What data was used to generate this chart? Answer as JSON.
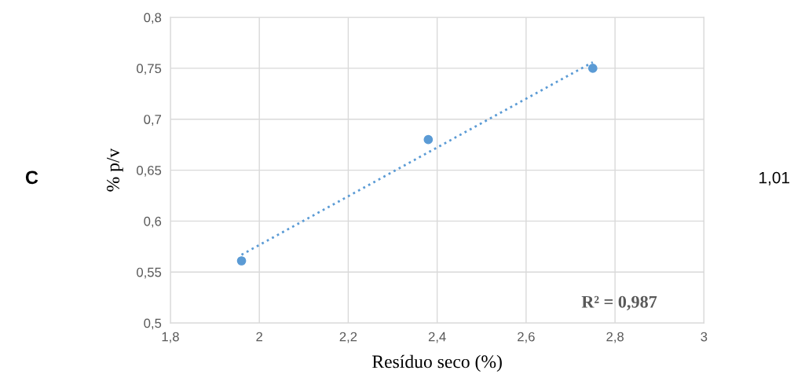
{
  "chart_data": {
    "type": "scatter",
    "xlabel": "Resíduo seco (%)",
    "ylabel": "% p/v",
    "x": [
      1.96,
      2.38,
      2.75
    ],
    "series": [
      {
        "color": "#5b9bd5",
        "values": [
          0.561,
          0.68,
          0.75
        ],
        "marker": "circle"
      },
      {
        "type": "line",
        "color": "#5b9bd5",
        "x": [
          1.96,
          2.75
        ],
        "values": [
          0.567,
          0.756
        ],
        "line_style": "dotted",
        "marker": "none"
      }
    ],
    "xlim": [
      1.8,
      3
    ],
    "ylim": [
      0.5,
      0.8
    ],
    "xticks": [
      {
        "value": 1.8,
        "label": "1,8"
      },
      2,
      {
        "value": 2.2,
        "label": "2,2"
      },
      {
        "value": 2.4,
        "label": "2,4"
      },
      {
        "value": 2.6,
        "label": "2,6"
      },
      {
        "value": 2.8,
        "label": "2,8"
      },
      3
    ],
    "yticks": [
      {
        "value": 0.5,
        "label": "0,5"
      },
      {
        "value": 0.55,
        "label": "0,55"
      },
      {
        "value": 0.6,
        "label": "0,6"
      },
      {
        "value": 0.65,
        "label": "0,65"
      },
      {
        "value": 0.7,
        "label": "0,7"
      },
      {
        "value": 0.75,
        "label": "0,75"
      },
      {
        "value": 0.8,
        "label": "0,8"
      }
    ],
    "grid": true,
    "legend": false,
    "annotations": [
      "R² = 0,987",
      "C",
      "1,01"
    ]
  }
}
